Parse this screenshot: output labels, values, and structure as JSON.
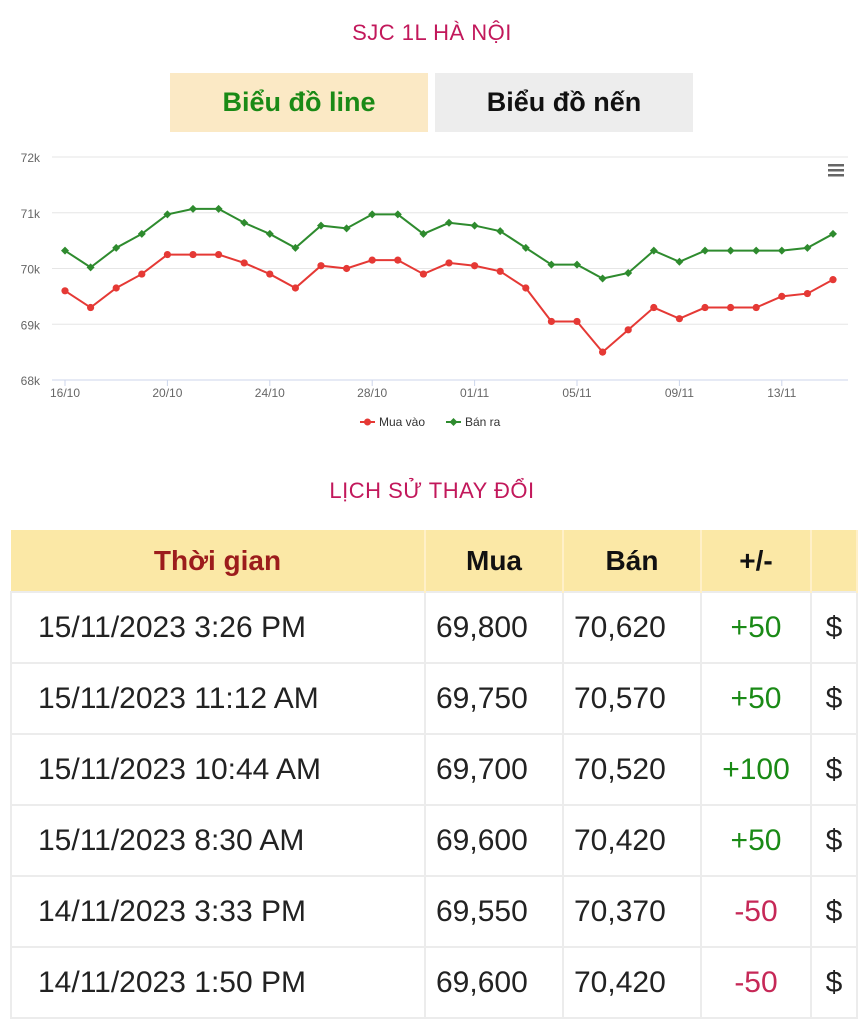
{
  "page_title": "SJC 1L HÀ NỘI",
  "tabs": {
    "line_label": "Biểu đồ line",
    "candle_label": "Biểu đồ nến"
  },
  "chart_menu_icon": "hamburger-menu-icon",
  "chart_data": {
    "type": "line",
    "x": [
      "16/10",
      "17/10",
      "18/10",
      "19/10",
      "20/10",
      "21/10",
      "22/10",
      "23/10",
      "24/10",
      "25/10",
      "26/10",
      "27/10",
      "28/10",
      "29/10",
      "30/10",
      "31/10",
      "01/11",
      "02/11",
      "03/11",
      "04/11",
      "05/11",
      "06/11",
      "07/11",
      "08/11",
      "09/11",
      "10/11",
      "11/11",
      "12/11",
      "13/11",
      "14/11",
      "15/11"
    ],
    "x_tick_labels": [
      "16/10",
      "20/10",
      "24/10",
      "28/10",
      "01/11",
      "05/11",
      "09/11",
      "13/11"
    ],
    "y_tick_labels": [
      "68k",
      "69k",
      "70k",
      "71k",
      "72k"
    ],
    "ylim": [
      68000,
      72000
    ],
    "grid": true,
    "legend_position": "bottom-center",
    "series": [
      {
        "name": "Mua vào",
        "color": "#e53935",
        "values": [
          69600,
          69300,
          69650,
          69900,
          70250,
          70250,
          70250,
          70100,
          69900,
          69650,
          70050,
          70000,
          70150,
          70150,
          69900,
          70100,
          70050,
          69950,
          69650,
          69050,
          69050,
          68500,
          68900,
          69300,
          69100,
          69300,
          69300,
          69300,
          69500,
          69550,
          69800
        ]
      },
      {
        "name": "Bán ra",
        "color": "#2e8b2e",
        "values": [
          70320,
          70020,
          70370,
          70620,
          70970,
          71070,
          71070,
          70820,
          70620,
          70370,
          70770,
          70720,
          70970,
          70970,
          70620,
          70820,
          70770,
          70670,
          70370,
          70070,
          70070,
          69820,
          69920,
          70320,
          70120,
          70320,
          70320,
          70320,
          70320,
          70370,
          70620
        ]
      }
    ]
  },
  "history": {
    "title": "LỊCH SỬ THAY ĐỔI",
    "headers": {
      "time": "Thời gian",
      "buy": "Mua",
      "sell": "Bán",
      "change": "+/-"
    },
    "rows": [
      {
        "time": "15/11/2023 3:26 PM",
        "buy": "69,800",
        "sell": "70,620",
        "change": "+50",
        "dollar": "$"
      },
      {
        "time": "15/11/2023 11:12 AM",
        "buy": "69,750",
        "sell": "70,570",
        "change": "+50",
        "dollar": "$"
      },
      {
        "time": "15/11/2023 10:44 AM",
        "buy": "69,700",
        "sell": "70,520",
        "change": "+100",
        "dollar": "$"
      },
      {
        "time": "15/11/2023 8:30 AM",
        "buy": "69,600",
        "sell": "70,420",
        "change": "+50",
        "dollar": "$"
      },
      {
        "time": "14/11/2023 3:33 PM",
        "buy": "69,550",
        "sell": "70,370",
        "change": "-50",
        "dollar": "$"
      },
      {
        "time": "14/11/2023 1:50 PM",
        "buy": "69,600",
        "sell": "70,420",
        "change": "-50",
        "dollar": "$"
      }
    ]
  }
}
